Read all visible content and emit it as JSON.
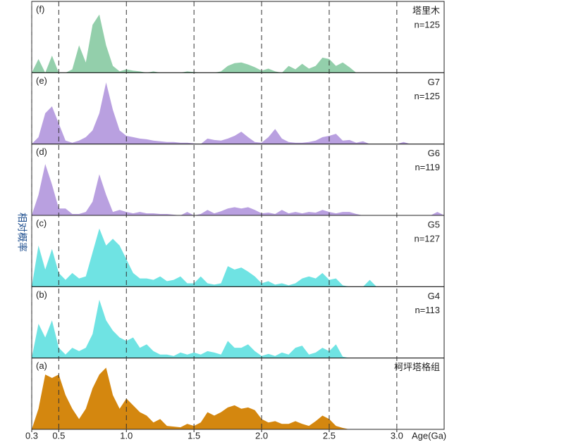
{
  "chart_data": {
    "type": "area",
    "ylabel": "相对概率",
    "xlabel": "Age(Ga)",
    "xlim": [
      0.3,
      3.35
    ],
    "ylim": [
      0,
      1
    ],
    "xticks": [
      0.3,
      0.5,
      {
        "value": 1,
        "label": "1.0"
      },
      1.5,
      {
        "value": 2,
        "label": "2.0"
      },
      2.5,
      {
        "value": 3,
        "label": "3.0"
      }
    ],
    "grid": true,
    "x": [
      0.3,
      0.35,
      0.4,
      0.45,
      0.5,
      0.55,
      0.6,
      0.65,
      0.7,
      0.75,
      0.8,
      0.85,
      0.9,
      0.95,
      1.0,
      1.05,
      1.1,
      1.15,
      1.2,
      1.25,
      1.3,
      1.35,
      1.4,
      1.45,
      1.5,
      1.55,
      1.6,
      1.65,
      1.7,
      1.75,
      1.8,
      1.85,
      1.9,
      1.95,
      2.0,
      2.05,
      2.1,
      2.15,
      2.2,
      2.25,
      2.3,
      2.35,
      2.4,
      2.45,
      2.5,
      2.55,
      2.6,
      2.65,
      2.7,
      2.75,
      2.8,
      2.85,
      2.9,
      2.95,
      3.0,
      3.05,
      3.1,
      3.15,
      3.2,
      3.25,
      3.3,
      3.35
    ],
    "series": [
      {
        "panel": "(f)",
        "name": "塔里木",
        "n_label": "n=125",
        "color": "#93cfab",
        "values": [
          0,
          0.2,
          0,
          0.25,
          0,
          0,
          0.05,
          0.4,
          0.15,
          0.7,
          0.85,
          0.4,
          0.1,
          0.02,
          0.05,
          0.03,
          0.02,
          0,
          0.02,
          0,
          0,
          0,
          0,
          0.02,
          0.01,
          0,
          0,
          0,
          0.02,
          0.1,
          0.14,
          0.15,
          0.12,
          0.08,
          0.03,
          0.06,
          0.02,
          0,
          0.1,
          0.05,
          0.13,
          0.06,
          0.1,
          0.22,
          0.2,
          0.1,
          0.15,
          0.08,
          0,
          0,
          0,
          0,
          0,
          0,
          0,
          0,
          0,
          0,
          0,
          0,
          0,
          0
        ]
      },
      {
        "panel": "(e)",
        "name": "G7",
        "n_label": "n=125",
        "color": "#b9a0e0",
        "values": [
          0,
          0.1,
          0.45,
          0.55,
          0.3,
          0.05,
          0.02,
          0.05,
          0.1,
          0.2,
          0.45,
          0.9,
          0.5,
          0.2,
          0.12,
          0.1,
          0.08,
          0.07,
          0.05,
          0.04,
          0.03,
          0.03,
          0.02,
          0.02,
          0.01,
          0,
          0.08,
          0.06,
          0.05,
          0.08,
          0.12,
          0.18,
          0.1,
          0.03,
          0.02,
          0.1,
          0.22,
          0.08,
          0.03,
          0.02,
          0.02,
          0.03,
          0.05,
          0.1,
          0.12,
          0.15,
          0.05,
          0.06,
          0.02,
          0.04,
          0,
          0,
          0,
          0,
          0,
          0.03,
          0,
          0,
          0,
          0,
          0,
          0
        ]
      },
      {
        "panel": "(d)",
        "name": "G6",
        "n_label": "n=119",
        "color": "#b9a0e0",
        "values": [
          0,
          0.3,
          0.75,
          0.45,
          0.1,
          0.1,
          0.02,
          0.02,
          0.05,
          0.2,
          0.6,
          0.3,
          0.05,
          0.08,
          0.05,
          0.03,
          0.05,
          0.03,
          0.03,
          0.02,
          0.02,
          0.01,
          0,
          0.05,
          0,
          0.02,
          0.08,
          0.03,
          0.06,
          0.1,
          0.12,
          0.1,
          0.12,
          0.08,
          0.03,
          0.04,
          0.02,
          0.08,
          0.03,
          0.05,
          0.03,
          0.05,
          0.04,
          0.08,
          0.05,
          0.03,
          0.05,
          0.05,
          0.02,
          0,
          0,
          0,
          0,
          0,
          0,
          0,
          0,
          0,
          0,
          0,
          0.05,
          0
        ]
      },
      {
        "panel": "(c)",
        "name": "G5",
        "n_label": "n=127",
        "color": "#6fe3e3",
        "values": [
          0,
          0.6,
          0.25,
          0.55,
          0.2,
          0.1,
          0.2,
          0.12,
          0.15,
          0.5,
          0.85,
          0.6,
          0.7,
          0.6,
          0.4,
          0.2,
          0.12,
          0.12,
          0.1,
          0.15,
          0.08,
          0.1,
          0.15,
          0.05,
          0.05,
          0.15,
          0.05,
          0.03,
          0.05,
          0.3,
          0.25,
          0.28,
          0.22,
          0.15,
          0.05,
          0.08,
          0.03,
          0.05,
          0.02,
          0.05,
          0.12,
          0.15,
          0.12,
          0.2,
          0.1,
          0.12,
          0.02,
          0,
          0,
          0,
          0.1,
          0,
          0,
          0,
          0,
          0,
          0,
          0,
          0,
          0,
          0,
          0
        ]
      },
      {
        "panel": "(b)",
        "name": "G4",
        "n_label": "n=113",
        "color": "#6fe3e3",
        "values": [
          0,
          0.5,
          0.3,
          0.55,
          0.15,
          0.05,
          0.15,
          0.1,
          0.15,
          0.35,
          0.85,
          0.55,
          0.4,
          0.3,
          0.25,
          0.3,
          0.15,
          0.2,
          0.1,
          0.05,
          0.05,
          0.03,
          0.08,
          0.05,
          0.08,
          0.05,
          0.1,
          0.08,
          0.05,
          0.25,
          0.15,
          0.15,
          0.2,
          0.1,
          0.03,
          0.06,
          0.03,
          0.08,
          0.05,
          0.15,
          0.18,
          0.05,
          0.08,
          0.15,
          0.1,
          0.2,
          0.02,
          0,
          0,
          0,
          0,
          0,
          0,
          0,
          0,
          0,
          0,
          0,
          0,
          0,
          0,
          0
        ]
      },
      {
        "panel": "(a)",
        "name": "柯坪塔格组",
        "color": "#d4870f",
        "values": [
          0,
          0.3,
          0.8,
          0.75,
          0.8,
          0.5,
          0.3,
          0.15,
          0.3,
          0.6,
          0.8,
          0.9,
          0.5,
          0.3,
          0.45,
          0.35,
          0.25,
          0.2,
          0.1,
          0.15,
          0.05,
          0.04,
          0.03,
          0.08,
          0.05,
          0.1,
          0.25,
          0.2,
          0.25,
          0.32,
          0.35,
          0.3,
          0.32,
          0.28,
          0.15,
          0.1,
          0.12,
          0.08,
          0.08,
          0.12,
          0.08,
          0.05,
          0.12,
          0.2,
          0.15,
          0.05,
          0.02,
          0,
          0,
          0,
          0,
          0,
          0,
          0,
          0,
          0,
          0,
          0,
          0,
          0,
          0,
          0
        ]
      }
    ]
  }
}
